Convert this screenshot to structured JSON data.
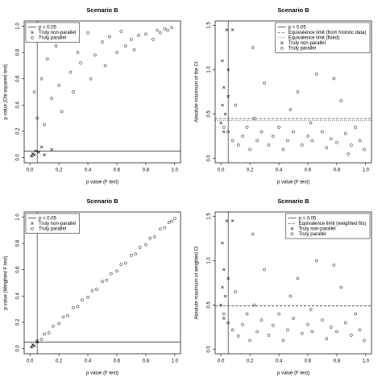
{
  "chart_data": [
    {
      "type": "scatter",
      "title": "Scenario B",
      "xlabel": "p value (F test)",
      "ylabel": "p value (Chi-squared test)",
      "xlim": [
        -0.04,
        1.04
      ],
      "ylim": [
        -0.04,
        1.04
      ],
      "xticks": [
        {
          "value": 0,
          "label": "0.0"
        },
        {
          "value": 0.2,
          "label": "0.2"
        },
        {
          "value": 0.4,
          "label": "0.4"
        },
        {
          "value": 0.6,
          "label": "0.6"
        },
        {
          "value": 0.8,
          "label": "0.8"
        },
        {
          "value": 1,
          "label": "1.0"
        }
      ],
      "yticks": [
        {
          "value": 0,
          "label": "0.0"
        },
        {
          "value": 0.2,
          "label": "0.2"
        },
        {
          "value": 0.4,
          "label": "0.4"
        },
        {
          "value": 0.6,
          "label": "0.6"
        },
        {
          "value": 0.8,
          "label": "0.8"
        },
        {
          "value": 1,
          "label": "1.0"
        }
      ],
      "legend": "top-left",
      "reference_lines": [
        {
          "name": "p = 0.05",
          "dash": "solid",
          "vertical": 0.05,
          "horizontal": 0.05
        }
      ],
      "series": [
        {
          "name": "Truly non-parallel",
          "marker": "x",
          "x": [
            0.01,
            0.02,
            0.03,
            0.04,
            0.06,
            0.08,
            0.1,
            0.15
          ],
          "values": [
            0.01,
            0.03,
            0.02,
            0.05,
            0.04,
            0.08,
            0.02,
            0.06
          ]
        },
        {
          "name": "Truly parallel",
          "marker": "o",
          "x": [
            0.02,
            0.03,
            0.05,
            0.08,
            0.1,
            0.12,
            0.15,
            0.18,
            0.2,
            0.22,
            0.25,
            0.28,
            0.3,
            0.33,
            0.35,
            0.4,
            0.42,
            0.45,
            0.5,
            0.52,
            0.55,
            0.6,
            0.63,
            0.66,
            0.7,
            0.72,
            0.75,
            0.8,
            0.85,
            0.88,
            0.9,
            0.93,
            0.95,
            0.98
          ],
          "values": [
            0.02,
            0.5,
            0.3,
            0.6,
            0.25,
            0.75,
            0.45,
            0.85,
            0.55,
            0.35,
            0.9,
            0.65,
            0.5,
            0.8,
            0.72,
            0.95,
            0.6,
            0.78,
            0.88,
            0.7,
            0.92,
            0.8,
            0.96,
            0.85,
            0.9,
            0.82,
            0.93,
            0.94,
            0.9,
            0.97,
            0.95,
            0.98,
            0.97,
            0.99
          ]
        }
      ]
    },
    {
      "type": "scatter",
      "title": "Scenario B",
      "xlabel": "p value (F test)",
      "ylabel": "Absolute maximum of the CI",
      "xlim": [
        -0.04,
        1.04
      ],
      "ylim": [
        -0.05,
        1.55
      ],
      "xticks": [
        {
          "value": 0,
          "label": "0.0"
        },
        {
          "value": 0.2,
          "label": "0.2"
        },
        {
          "value": 0.4,
          "label": "0.4"
        },
        {
          "value": 0.6,
          "label": "0.6"
        },
        {
          "value": 0.8,
          "label": "0.8"
        },
        {
          "value": 1,
          "label": "1.0"
        }
      ],
      "yticks": [
        {
          "value": 0,
          "label": "0.0"
        },
        {
          "value": 0.5,
          "label": "0.5"
        },
        {
          "value": 1,
          "label": "1.0"
        },
        {
          "value": 1.5,
          "label": "1.5"
        }
      ],
      "legend": "top-right",
      "reference_lines": [
        {
          "name": "p = 0.05",
          "dash": "solid",
          "vertical": 0.05
        },
        {
          "name": "Equivalence limit (from historic data)",
          "dash": "dashed",
          "horizontal": 0.45
        },
        {
          "name": "Equivalence limit (fixed)",
          "dash": "dotted",
          "horizontal": 0.43
        }
      ],
      "series": [
        {
          "name": "Truly non-parallel",
          "marker": "x",
          "x": [
            0.0,
            0.01,
            0.01,
            0.02,
            0.02,
            0.03,
            0.04,
            0.05,
            0.08,
            0.05
          ],
          "values": [
            0.4,
            0.6,
            1.1,
            0.8,
            0.3,
            0.5,
            1.45,
            0.7,
            1.45,
            1.0
          ]
        },
        {
          "name": "Truly parallel",
          "marker": "o",
          "x": [
            0.02,
            0.05,
            0.08,
            0.1,
            0.12,
            0.15,
            0.18,
            0.2,
            0.23,
            0.25,
            0.28,
            0.3,
            0.33,
            0.36,
            0.4,
            0.43,
            0.46,
            0.5,
            0.53,
            0.56,
            0.6,
            0.63,
            0.66,
            0.7,
            0.73,
            0.76,
            0.8,
            0.83,
            0.86,
            0.9,
            0.93,
            0.96,
            0.99,
            0.22,
            0.48,
            0.62,
            0.78,
            0.88
          ],
          "values": [
            0.35,
            0.3,
            0.2,
            0.6,
            0.15,
            0.25,
            0.35,
            0.1,
            0.45,
            0.2,
            0.3,
            0.85,
            0.15,
            0.25,
            0.35,
            0.1,
            0.2,
            0.3,
            0.75,
            0.15,
            0.25,
            0.2,
            0.95,
            0.3,
            0.12,
            0.22,
            0.18,
            0.65,
            0.28,
            0.15,
            0.35,
            0.2,
            0.1,
            1.25,
            0.55,
            0.4,
            0.9,
            0.05
          ]
        }
      ]
    },
    {
      "type": "scatter",
      "title": "Scenario B",
      "xlabel": "p value (F test)",
      "ylabel": "p value (Weighted F test)",
      "xlim": [
        -0.04,
        1.04
      ],
      "ylim": [
        -0.04,
        1.04
      ],
      "xticks": [
        {
          "value": 0,
          "label": "0.0"
        },
        {
          "value": 0.2,
          "label": "0.2"
        },
        {
          "value": 0.4,
          "label": "0.4"
        },
        {
          "value": 0.6,
          "label": "0.6"
        },
        {
          "value": 0.8,
          "label": "0.8"
        },
        {
          "value": 1,
          "label": "1.0"
        }
      ],
      "yticks": [
        {
          "value": 0,
          "label": "0.0"
        },
        {
          "value": 0.2,
          "label": "0.2"
        },
        {
          "value": 0.4,
          "label": "0.4"
        },
        {
          "value": 0.6,
          "label": "0.6"
        },
        {
          "value": 0.8,
          "label": "0.8"
        },
        {
          "value": 1,
          "label": "1.0"
        }
      ],
      "legend": "top-left",
      "reference_lines": [
        {
          "name": "p = 0.05",
          "dash": "solid",
          "vertical": 0.05,
          "horizontal": 0.05
        }
      ],
      "series": [
        {
          "name": "Truly non-parallel",
          "marker": "x",
          "x": [
            0.01,
            0.02,
            0.03,
            0.05
          ],
          "values": [
            0.01,
            0.03,
            0.02,
            0.05
          ]
        },
        {
          "name": "Truly parallel",
          "marker": "o",
          "x": [
            0.02,
            0.05,
            0.08,
            0.1,
            0.13,
            0.16,
            0.2,
            0.23,
            0.26,
            0.3,
            0.33,
            0.36,
            0.4,
            0.43,
            0.46,
            0.5,
            0.53,
            0.56,
            0.6,
            0.63,
            0.66,
            0.7,
            0.73,
            0.76,
            0.8,
            0.83,
            0.86,
            0.9,
            0.93,
            0.96,
            0.98,
            1.0
          ],
          "values": [
            0.02,
            0.06,
            0.07,
            0.11,
            0.12,
            0.17,
            0.19,
            0.24,
            0.25,
            0.31,
            0.32,
            0.37,
            0.39,
            0.44,
            0.45,
            0.51,
            0.52,
            0.57,
            0.59,
            0.64,
            0.65,
            0.71,
            0.72,
            0.77,
            0.79,
            0.84,
            0.85,
            0.91,
            0.92,
            0.96,
            0.97,
            0.99
          ]
        }
      ]
    },
    {
      "type": "scatter",
      "title": "Scenario B",
      "xlabel": "p value (F test)",
      "ylabel": "Absolute maximum of weighted CI",
      "xlim": [
        -0.04,
        1.04
      ],
      "ylim": [
        -0.05,
        1.55
      ],
      "xticks": [
        {
          "value": 0,
          "label": "0.0"
        },
        {
          "value": 0.2,
          "label": "0.2"
        },
        {
          "value": 0.4,
          "label": "0.4"
        },
        {
          "value": 0.6,
          "label": "0.6"
        },
        {
          "value": 0.8,
          "label": "0.8"
        },
        {
          "value": 1,
          "label": "1.0"
        }
      ],
      "yticks": [
        {
          "value": 0,
          "label": "0.0"
        },
        {
          "value": 0.5,
          "label": "0.5"
        },
        {
          "value": 1,
          "label": "1.0"
        },
        {
          "value": 1.5,
          "label": "1.5"
        }
      ],
      "legend": "top-right",
      "reference_lines": [
        {
          "name": "p = 0.05",
          "dash": "solid",
          "vertical": 0.05
        },
        {
          "name": "Equivalence limit (weighted fits)",
          "dash": "dashed",
          "horizontal": 0.49
        }
      ],
      "series": [
        {
          "name": "Truly non-parallel",
          "marker": "x",
          "x": [
            0.0,
            0.01,
            0.01,
            0.02,
            0.02,
            0.03,
            0.04,
            0.05,
            0.08
          ],
          "values": [
            0.5,
            0.7,
            1.2,
            0.9,
            0.35,
            0.6,
            1.45,
            0.8,
            1.45
          ]
        },
        {
          "name": "Truly parallel",
          "marker": "o",
          "x": [
            0.02,
            0.05,
            0.08,
            0.1,
            0.12,
            0.15,
            0.18,
            0.2,
            0.23,
            0.25,
            0.28,
            0.3,
            0.33,
            0.36,
            0.4,
            0.43,
            0.46,
            0.5,
            0.53,
            0.56,
            0.6,
            0.63,
            0.66,
            0.7,
            0.73,
            0.76,
            0.8,
            0.83,
            0.86,
            0.9,
            0.93,
            0.96,
            0.99,
            0.22,
            0.48,
            0.62,
            0.78
          ],
          "values": [
            0.4,
            0.3,
            0.22,
            0.65,
            0.15,
            0.28,
            0.4,
            0.1,
            0.5,
            0.2,
            0.33,
            0.9,
            0.16,
            0.27,
            0.4,
            0.1,
            0.22,
            0.35,
            0.8,
            0.18,
            0.28,
            0.2,
            1.0,
            0.33,
            0.12,
            0.25,
            0.2,
            0.7,
            0.3,
            0.16,
            0.4,
            0.22,
            0.1,
            1.3,
            0.6,
            0.45,
            0.95
          ]
        }
      ]
    }
  ]
}
